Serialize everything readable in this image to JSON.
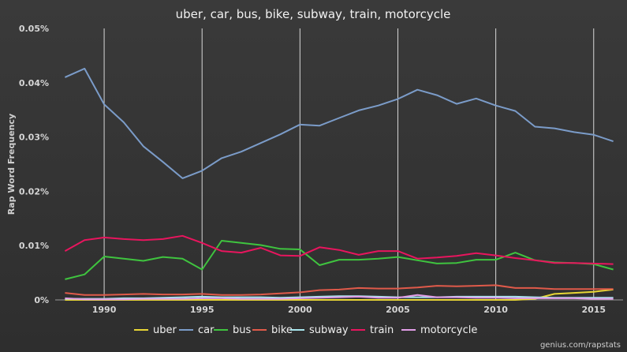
{
  "chart_data": {
    "type": "line",
    "title": "uber, car, bus, bike, subway, train, motorcycle",
    "ylabel": "Rap Word Frequency",
    "xlabel": "",
    "xlim": [
      1987.5,
      2016.5
    ],
    "ylim": [
      0,
      0.05
    ],
    "x_ticks": [
      1990,
      1995,
      2000,
      2005,
      2010,
      2015
    ],
    "y_ticks": [
      0,
      0.01,
      0.02,
      0.03,
      0.04,
      0.05
    ],
    "y_tick_labels": [
      "0%",
      "0.01%",
      "0.02%",
      "0.03%",
      "0.04%",
      "0.05%"
    ],
    "grid": "vertical",
    "legend_position": "bottom",
    "credit": "genius.com/rapstats",
    "x": [
      1988,
      1989,
      1990,
      1991,
      1992,
      1993,
      1994,
      1995,
      1996,
      1997,
      1998,
      1999,
      2000,
      2001,
      2002,
      2003,
      2004,
      2005,
      2006,
      2007,
      2008,
      2009,
      2010,
      2011,
      2012,
      2013,
      2014,
      2015,
      2016
    ],
    "series": [
      {
        "name": "uber",
        "color": "#e8d635",
        "values": [
          0,
          0,
          0,
          0,
          0,
          0,
          0,
          0,
          0,
          0,
          0,
          0,
          0,
          0,
          0,
          0,
          0,
          0,
          0,
          0,
          0,
          0,
          0,
          0,
          0.0002,
          0.0011,
          0.0013,
          0.0015,
          0.0019
        ]
      },
      {
        "name": "car",
        "color": "#7b9cc9",
        "values": [
          0.041,
          0.0426,
          0.036,
          0.0327,
          0.0283,
          0.0254,
          0.0224,
          0.0238,
          0.0261,
          0.0273,
          0.0289,
          0.0305,
          0.0323,
          0.0321,
          0.0335,
          0.0349,
          0.0358,
          0.037,
          0.0387,
          0.0377,
          0.0361,
          0.0371,
          0.0358,
          0.0348,
          0.0319,
          0.0316,
          0.0309,
          0.0304,
          0.0292
        ]
      },
      {
        "name": "bus",
        "color": "#3fc43f",
        "values": [
          0.0038,
          0.0047,
          0.008,
          0.0076,
          0.0072,
          0.0079,
          0.0076,
          0.0056,
          0.0109,
          0.0105,
          0.0101,
          0.0094,
          0.0093,
          0.0064,
          0.0074,
          0.0074,
          0.0076,
          0.0079,
          0.0073,
          0.0067,
          0.0068,
          0.0074,
          0.0074,
          0.0087,
          0.0073,
          0.0069,
          0.0068,
          0.0066,
          0.0056
        ]
      },
      {
        "name": "bike",
        "color": "#e05a4a",
        "values": [
          0.0013,
          0.0009,
          0.0009,
          0.001,
          0.0011,
          0.001,
          0.001,
          0.0011,
          0.0009,
          0.0009,
          0.001,
          0.0012,
          0.0014,
          0.0018,
          0.0019,
          0.0022,
          0.0021,
          0.0021,
          0.0023,
          0.0026,
          0.0025,
          0.0026,
          0.0027,
          0.0022,
          0.0022,
          0.002,
          0.002,
          0.002,
          0.002
        ]
      },
      {
        "name": "subway",
        "color": "#a8e6ee",
        "values": [
          0.0002,
          0.0002,
          0.0002,
          0.0003,
          0.0003,
          0.0004,
          0.0005,
          0.0006,
          0.0005,
          0.0005,
          0.0005,
          0.0004,
          0.0005,
          0.0006,
          0.0007,
          0.0007,
          0.0006,
          0.0005,
          0.0005,
          0.0005,
          0.0006,
          0.0006,
          0.0006,
          0.0006,
          0.0005,
          0.0004,
          0.0004,
          0.0004,
          0.0004
        ]
      },
      {
        "name": "train",
        "color": "#e8155e",
        "values": [
          0.009,
          0.011,
          0.0115,
          0.0112,
          0.011,
          0.0112,
          0.0118,
          0.0105,
          0.009,
          0.0087,
          0.0096,
          0.0082,
          0.0081,
          0.0097,
          0.0092,
          0.0083,
          0.009,
          0.009,
          0.0076,
          0.0078,
          0.0081,
          0.0086,
          0.0082,
          0.0077,
          0.0073,
          0.0068,
          0.0068,
          0.0067,
          0.0066
        ]
      },
      {
        "name": "motorcycle",
        "color": "#e29ee8",
        "values": [
          0.0003,
          0.0001,
          0.0001,
          0.0001,
          0.0002,
          0.0002,
          0.0002,
          0.0003,
          0.0003,
          0.0002,
          0.0002,
          0.0002,
          0.0003,
          0.0004,
          0.0005,
          0.0006,
          0.0004,
          0.0004,
          0.0009,
          0.0005,
          0.0005,
          0.0004,
          0.0004,
          0.0003,
          0.0003,
          0.0003,
          0.0003,
          0.0002,
          0.0002
        ]
      }
    ]
  }
}
